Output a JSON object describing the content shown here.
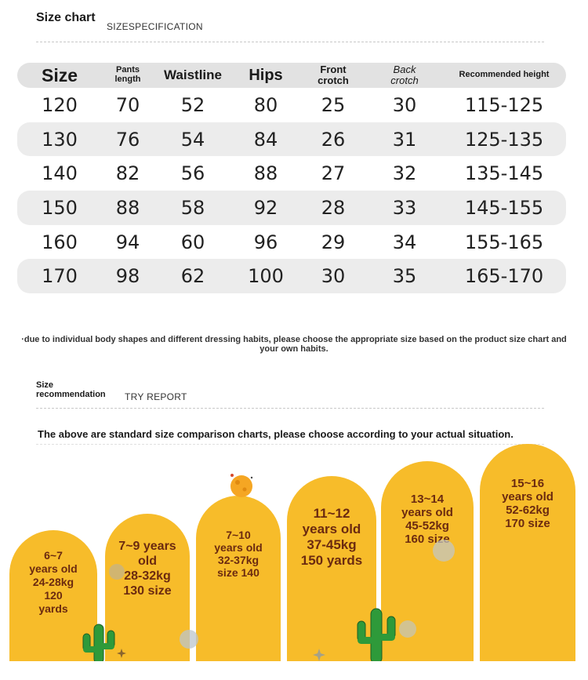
{
  "header": {
    "title": "Size chart",
    "subtitle": "SIZESPECIFICATION"
  },
  "table": {
    "columns": [
      "Size",
      "Pants\nlength",
      "Waistline",
      "Hips",
      "Front\ncrotch",
      "Back\ncrotch",
      "Recommended height"
    ],
    "rows": [
      [
        "120",
        "70",
        "52",
        "80",
        "25",
        "30",
        "115-125"
      ],
      [
        "130",
        "76",
        "54",
        "84",
        "26",
        "31",
        "125-135"
      ],
      [
        "140",
        "82",
        "56",
        "88",
        "27",
        "32",
        "135-145"
      ],
      [
        "150",
        "88",
        "58",
        "92",
        "28",
        "33",
        "145-155"
      ],
      [
        "160",
        "94",
        "60",
        "96",
        "29",
        "34",
        "155-165"
      ],
      [
        "170",
        "98",
        "62",
        "100",
        "30",
        "35",
        "165-170"
      ]
    ]
  },
  "note": "·due to individual body shapes and different dressing habits, please choose the appropriate size based on the product size chart and your own habits.",
  "recommendation": {
    "title": "Size recommendation",
    "subtitle": "TRY REPORT",
    "intro": "The above are standard size comparison charts, please choose according to your actual situation.",
    "cards": [
      "6~7\nyears old\n24-28kg\n120\nyards",
      "7~9 years\nold\n28-32kg\n130 size",
      "7~10\nyears old\n32-37kg\nsize 140",
      "11~12\nyears old\n37-45kg\n150 yards",
      "13~14\nyears old\n45-52kg\n160 size",
      "15~16\nyears old\n52-62kg\n170 size"
    ]
  },
  "colors": {
    "arch": "#f7bc2a",
    "arch_text": "#6b2a10",
    "cactus": "#2e9a3a",
    "moon": "#f5a623"
  },
  "icons": [
    "cactus-icon",
    "moon-icon",
    "star-icon",
    "planet-icon"
  ]
}
